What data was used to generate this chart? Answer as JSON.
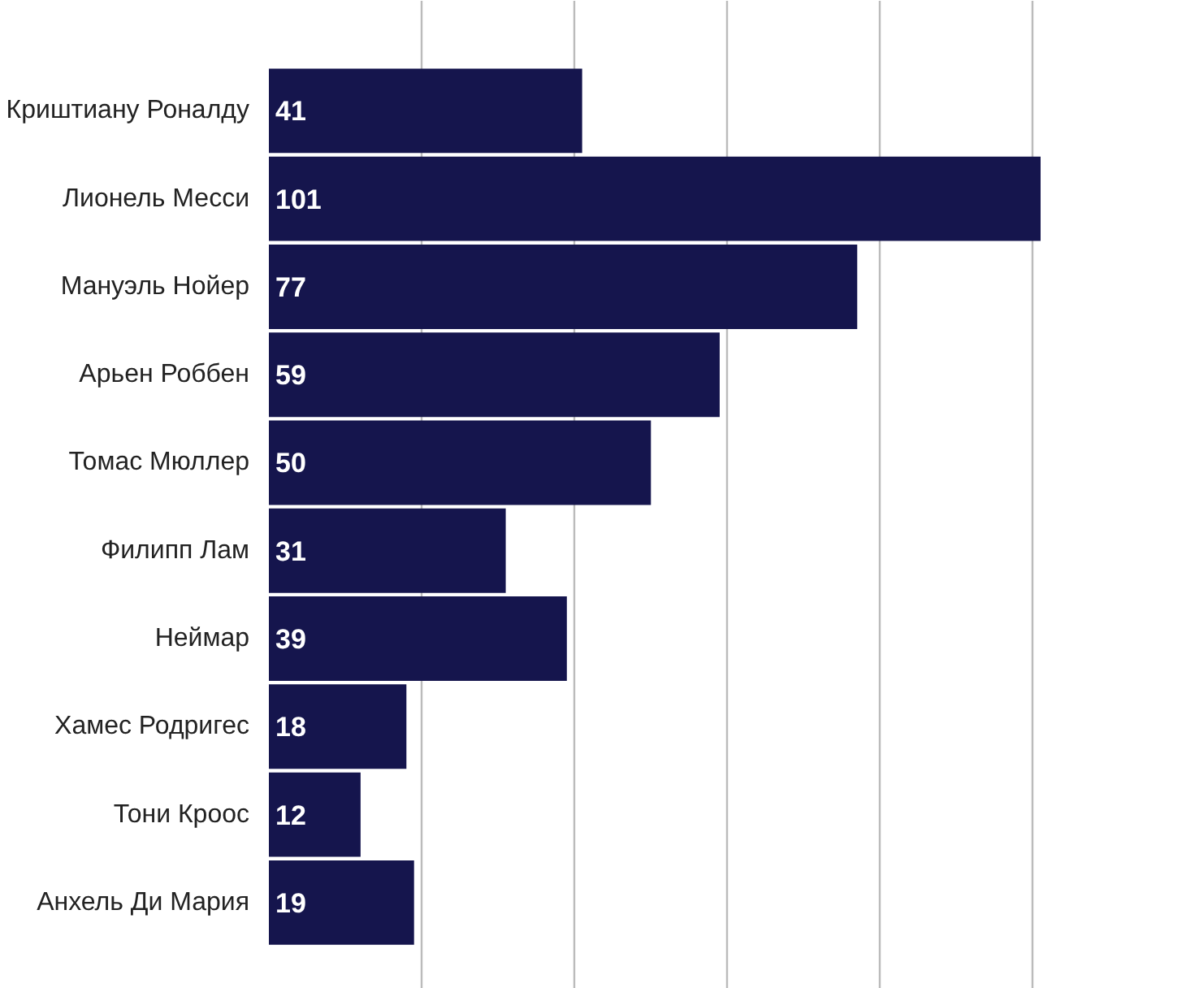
{
  "chart_data": {
    "type": "bar",
    "orientation": "horizontal",
    "categories": [
      "Криштиану Роналду",
      "Лионель Месси",
      "Мануэль Нойер",
      "Арьен Роббен",
      "Томас Мюллер",
      "Филипп Лам",
      "Неймар",
      "Хамес Родригес",
      "Тони Кроос",
      "Анхель Ди Мария"
    ],
    "values": [
      41,
      101,
      77,
      59,
      50,
      31,
      39,
      18,
      12,
      19
    ],
    "color": "#15154d",
    "grid": "x",
    "tick_labels": "y",
    "data_labels": true
  }
}
